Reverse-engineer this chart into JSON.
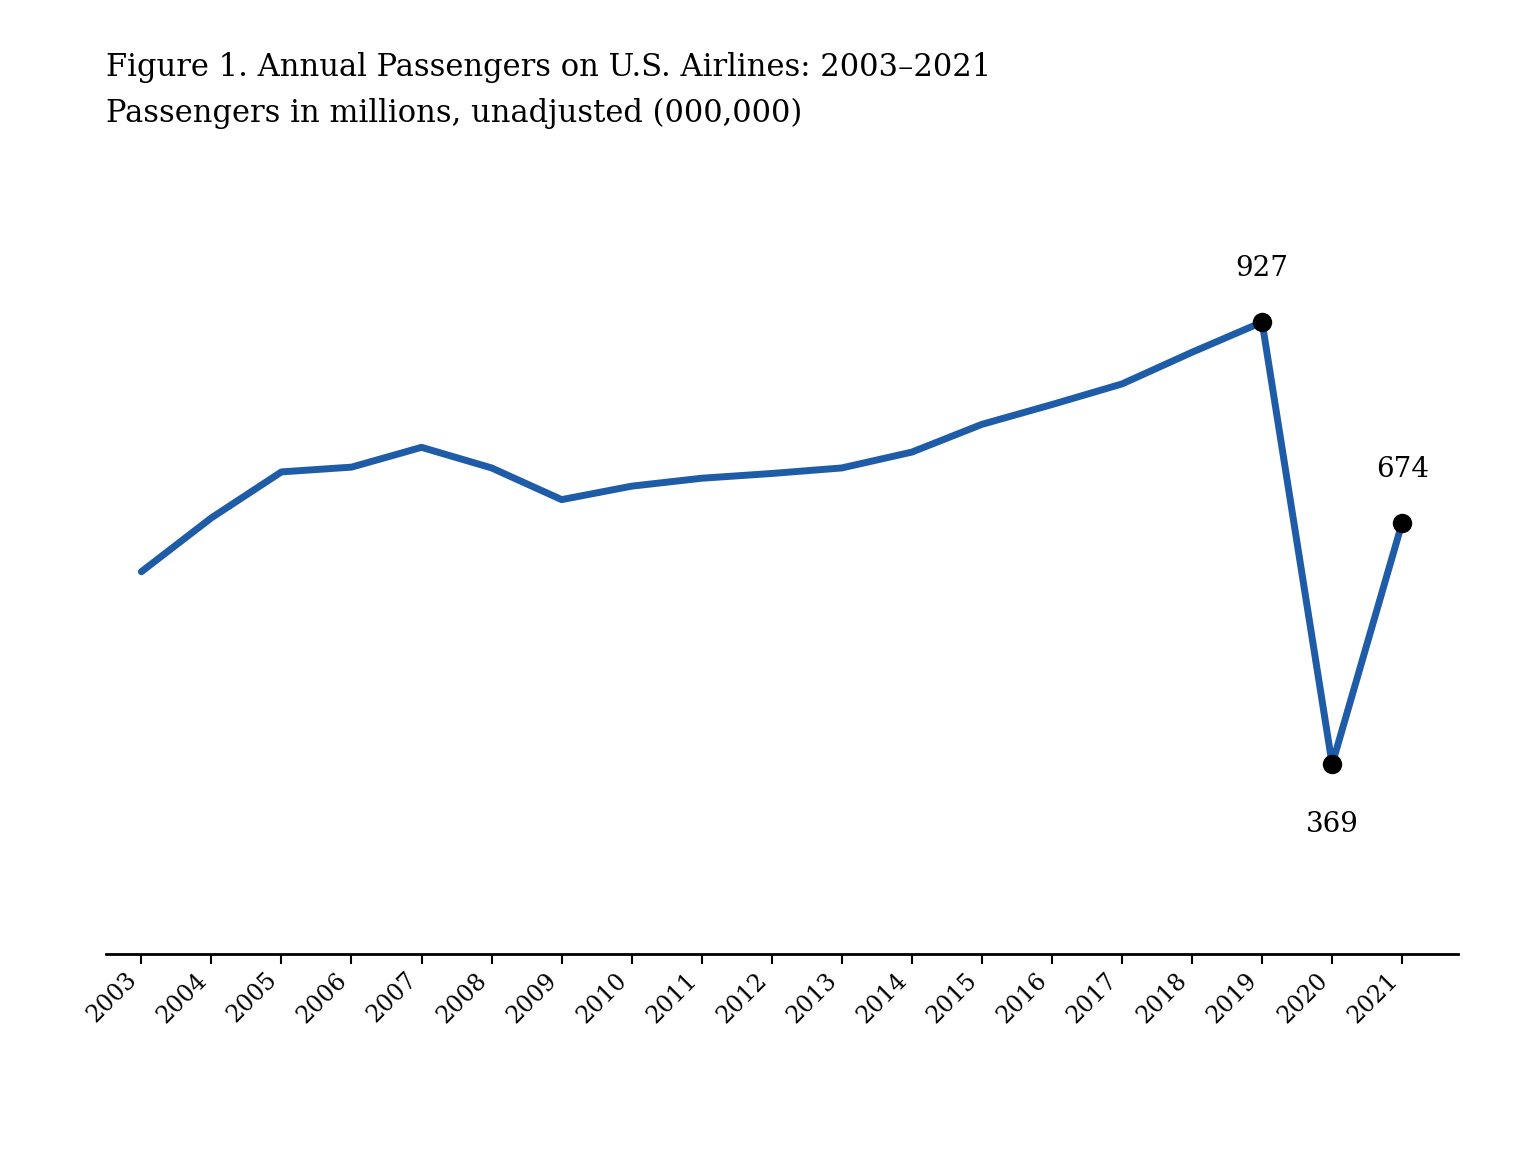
{
  "years": [
    2003,
    2004,
    2005,
    2006,
    2007,
    2008,
    2009,
    2010,
    2011,
    2012,
    2013,
    2014,
    2015,
    2016,
    2017,
    2018,
    2019,
    2020,
    2021
  ],
  "passengers": [
    612,
    680,
    738,
    744,
    769,
    743,
    703,
    720,
    730,
    736,
    743,
    763,
    798,
    823,
    849,
    889,
    927,
    369,
    674
  ],
  "annotated_years": [
    2019,
    2020,
    2021
  ],
  "annotated_values": [
    927,
    369,
    674
  ],
  "line_color": "#1F5CA8",
  "marker_color": "#000000",
  "line_width": 5.0,
  "marker_size": 14,
  "title_line1": "Figure 1. Annual Passengers on U.S. Airlines: 2003–2021",
  "title_line2": "Passengers in millions, unadjusted (000,000)",
  "title_fontsize": 22,
  "annotation_fontsize": 20,
  "tick_fontsize": 17,
  "background_color": "#ffffff",
  "ylim": [
    130,
    1040
  ],
  "xlim": [
    2002.5,
    2021.8
  ]
}
